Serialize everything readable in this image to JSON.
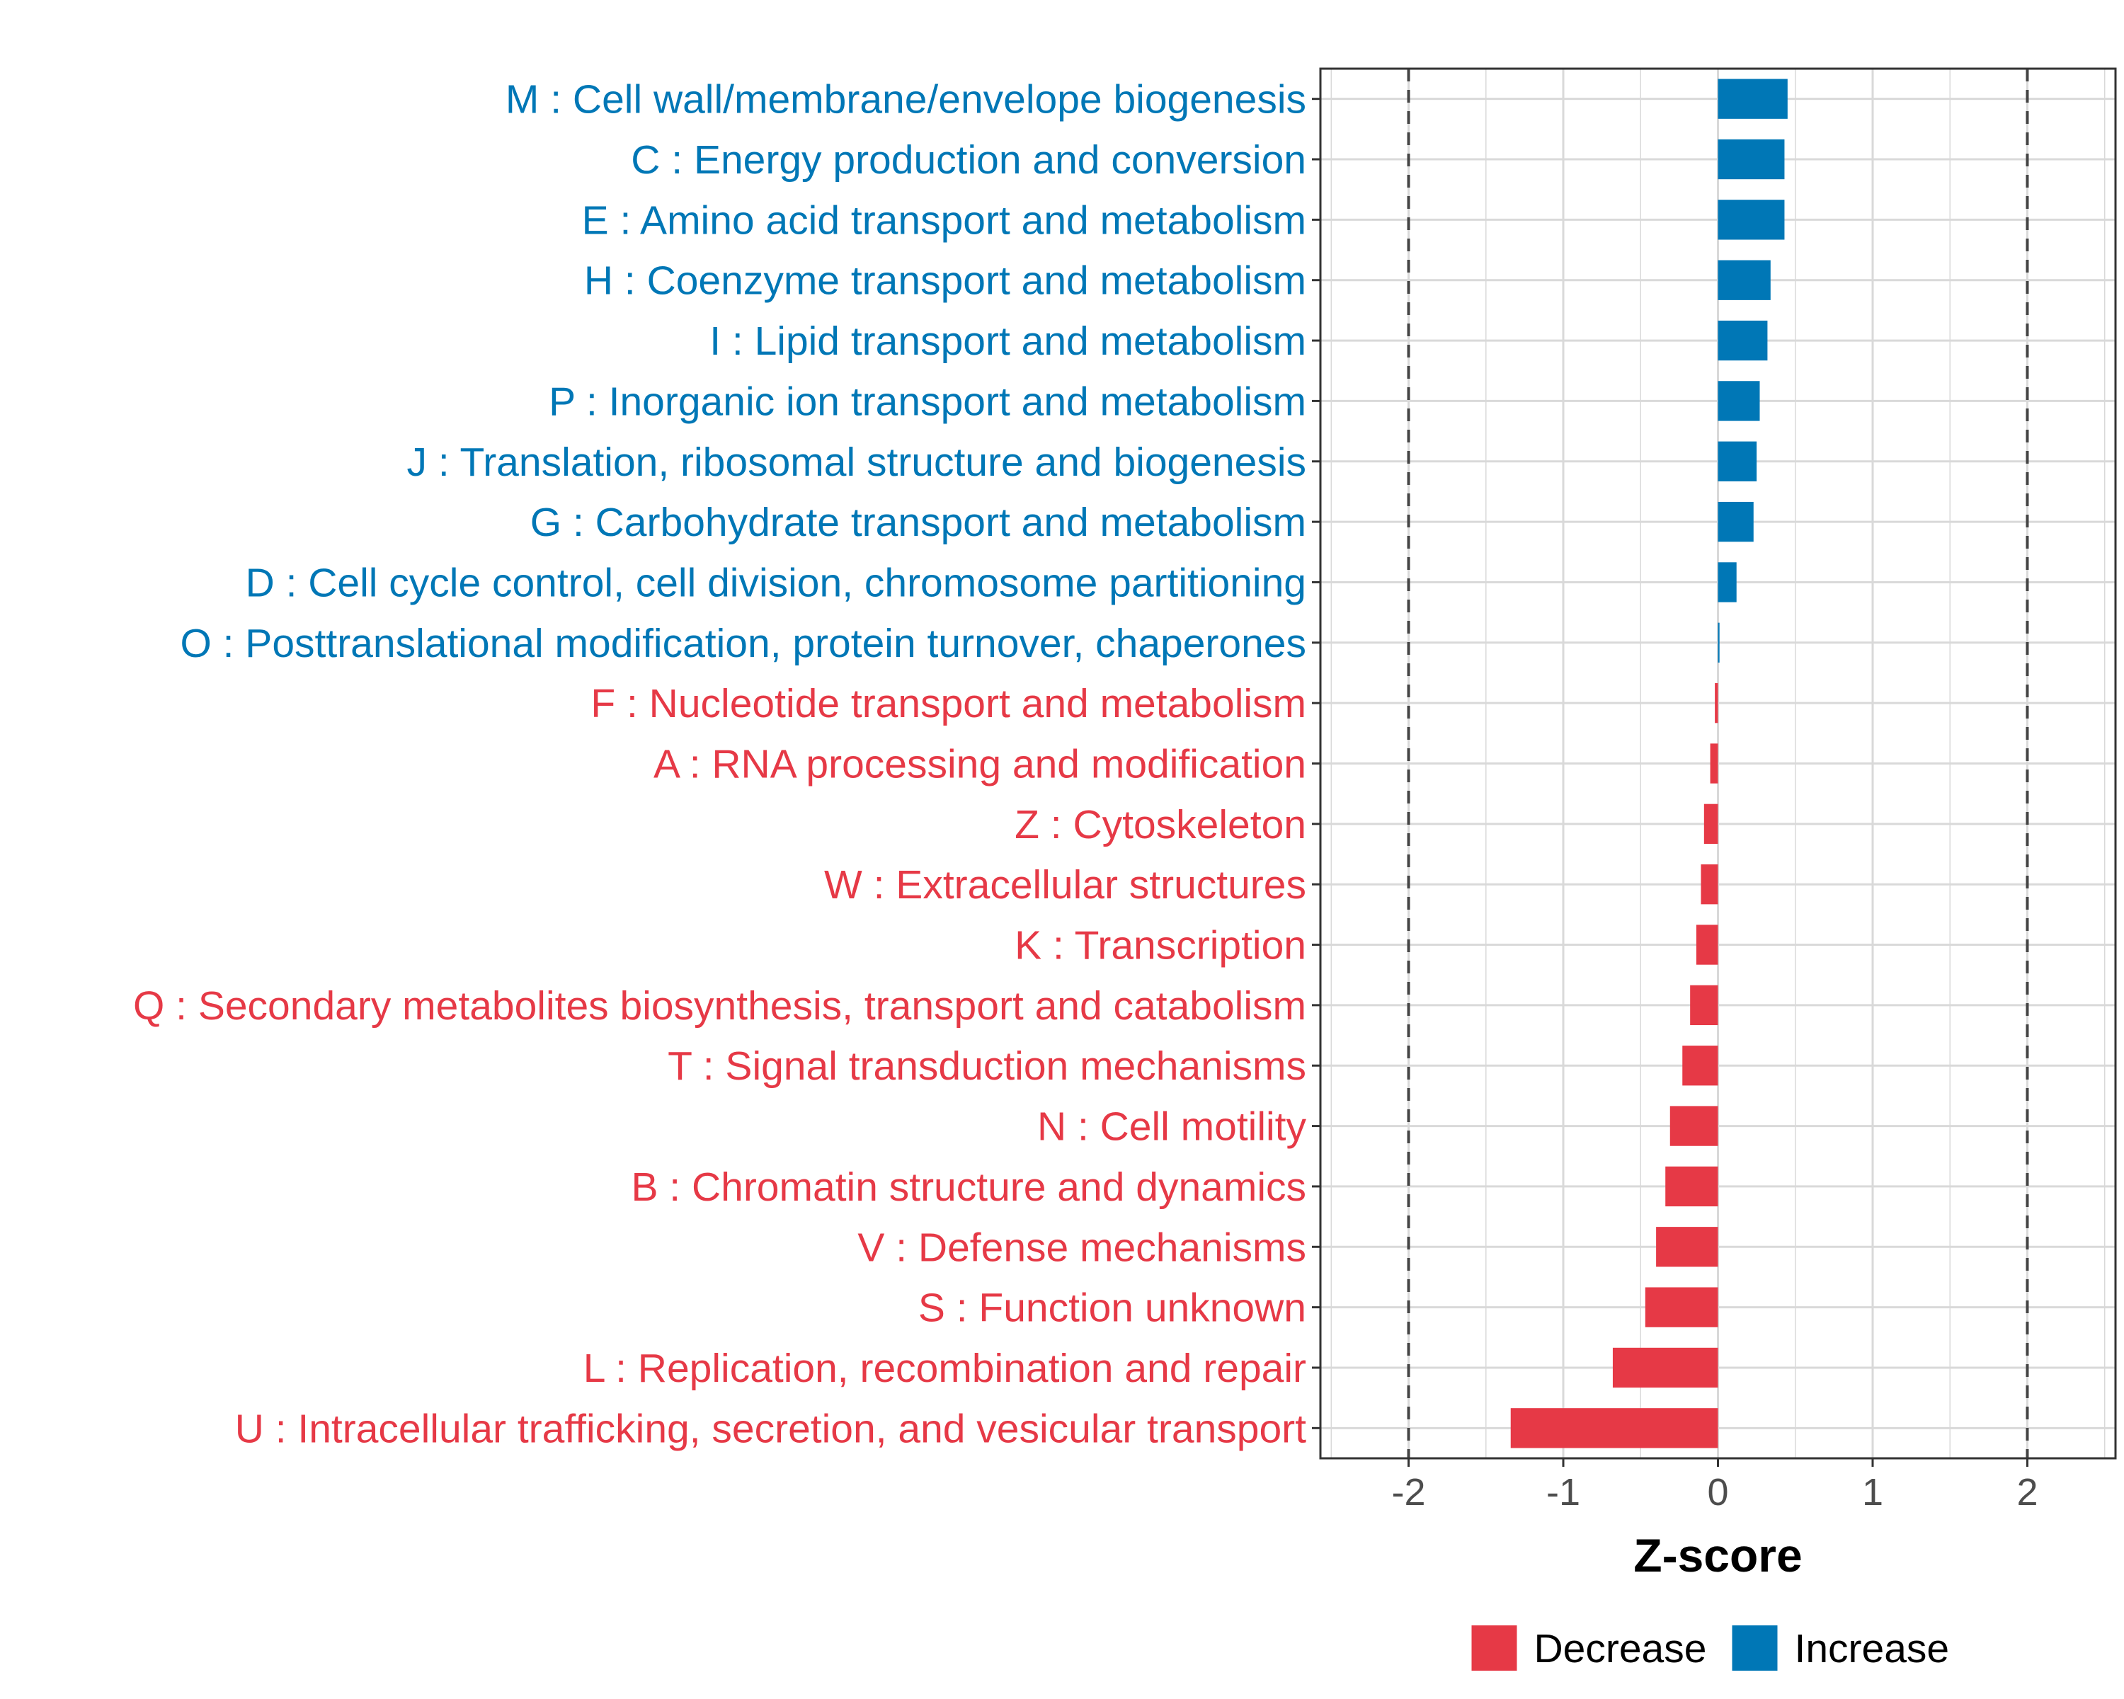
{
  "chart_data": {
    "type": "bar",
    "orientation": "horizontal",
    "xlabel": "Z-score",
    "ylabel": "",
    "xlim": [
      -2.57,
      2.57
    ],
    "xticks": [
      -2,
      -1,
      0,
      1,
      2
    ],
    "tick_labels": [
      "-2",
      "-1",
      "0",
      "1",
      "2"
    ],
    "reference_lines": [
      -2,
      2
    ],
    "grid": true,
    "legend_position": "bottom",
    "legend": [
      {
        "name": "Decrease",
        "color": "#e63946"
      },
      {
        "name": "Increase",
        "color": "#0077b6"
      }
    ],
    "categories": [
      "M : Cell wall/membrane/envelope biogenesis",
      "C : Energy production and conversion",
      "E : Amino acid transport and metabolism",
      "H : Coenzyme transport and metabolism",
      "I : Lipid transport and metabolism",
      "P : Inorganic ion transport and metabolism",
      "J : Translation, ribosomal structure and biogenesis",
      "G : Carbohydrate transport and metabolism",
      "D : Cell cycle control, cell division, chromosome partitioning",
      "O : Posttranslational modification, protein turnover, chaperones",
      "F : Nucleotide transport and metabolism",
      "A : RNA processing and modification",
      "Z : Cytoskeleton",
      "W : Extracellular structures",
      "K : Transcription",
      "Q : Secondary metabolites biosynthesis, transport and catabolism",
      "T : Signal transduction mechanisms",
      "N : Cell motility",
      "B : Chromatin structure and dynamics",
      "V : Defense mechanisms",
      "S : Function unknown",
      "L : Replication, recombination and repair",
      "U : Intracellular trafficking, secretion, and vesicular transport"
    ],
    "values": [
      0.45,
      0.43,
      0.43,
      0.34,
      0.32,
      0.27,
      0.25,
      0.23,
      0.12,
      0.01,
      -0.02,
      -0.05,
      -0.09,
      -0.11,
      -0.14,
      -0.18,
      -0.23,
      -0.31,
      -0.34,
      -0.4,
      -0.47,
      -0.68,
      -1.34
    ],
    "groups": [
      "Increase",
      "Increase",
      "Increase",
      "Increase",
      "Increase",
      "Increase",
      "Increase",
      "Increase",
      "Increase",
      "Increase",
      "Decrease",
      "Decrease",
      "Decrease",
      "Decrease",
      "Decrease",
      "Decrease",
      "Decrease",
      "Decrease",
      "Decrease",
      "Decrease",
      "Decrease",
      "Decrease",
      "Decrease"
    ]
  }
}
